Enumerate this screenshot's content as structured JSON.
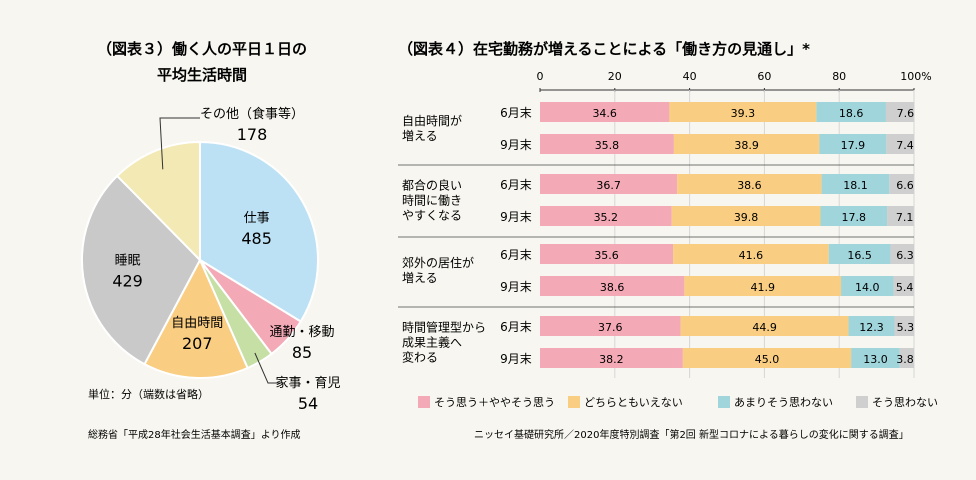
{
  "chart_data": [
    {
      "type": "pie",
      "title_line1": "（図表３）働く人の平日１日の",
      "title_line2": "平均生活時間",
      "slices": [
        {
          "name": "仕事",
          "value": 485,
          "color": "#bde1f4"
        },
        {
          "name": "通勤・移動",
          "value": 85,
          "color": "#f3aab6"
        },
        {
          "name": "家事・育児",
          "value": 54,
          "color": "#c6dfa4"
        },
        {
          "name": "自由時間",
          "value": 207,
          "color": "#f9cd82"
        },
        {
          "name": "睡眠",
          "value": 429,
          "color": "#c9c9c9"
        },
        {
          "name": "その他（食事等）",
          "value": 178,
          "color": "#f2e9b4"
        }
      ],
      "unit_note": "単位：分（端数は省略）",
      "source": "総務省「平成28年社会生活基本調査」より作成"
    },
    {
      "type": "bar",
      "orientation": "horizontal-stacked-100",
      "title": "（図表４）在宅勤務が増えることによる「働き方の見通し」*",
      "xlim": [
        0,
        100
      ],
      "xticks": [
        "0",
        "20",
        "40",
        "60",
        "80",
        "100%"
      ],
      "series": [
        {
          "name": "そう思う＋ややそう思う",
          "color": "#f3aab6"
        },
        {
          "name": "どちらともいえない",
          "color": "#f9cd82"
        },
        {
          "name": "あまりそう思わない",
          "color": "#9fd5db"
        },
        {
          "name": "そう思わない",
          "color": "#cfcfcf"
        }
      ],
      "groups": [
        {
          "label": [
            "自由時間が",
            "増える"
          ],
          "rows": [
            {
              "label": "6月末",
              "values": [
                34.6,
                39.3,
                18.6,
                7.6
              ]
            },
            {
              "label": "9月末",
              "values": [
                35.8,
                38.9,
                17.9,
                7.4
              ]
            }
          ]
        },
        {
          "label": [
            "都合の良い",
            "時間に働き",
            "やすくなる"
          ],
          "rows": [
            {
              "label": "6月末",
              "values": [
                36.7,
                38.6,
                18.1,
                6.6
              ]
            },
            {
              "label": "9月末",
              "values": [
                35.2,
                39.8,
                17.8,
                7.1
              ]
            }
          ]
        },
        {
          "label": [
            "郊外の居住が",
            "増える"
          ],
          "rows": [
            {
              "label": "6月末",
              "values": [
                35.6,
                41.6,
                16.5,
                6.3
              ]
            },
            {
              "label": "9月末",
              "values": [
                38.6,
                41.9,
                14.0,
                5.4
              ]
            }
          ]
        },
        {
          "label": [
            "時間管理型から",
            "成果主義へ",
            "変わる"
          ],
          "rows": [
            {
              "label": "6月末",
              "values": [
                37.6,
                44.9,
                12.3,
                5.3
              ]
            },
            {
              "label": "9月末",
              "values": [
                38.2,
                45.0,
                13.0,
                3.8
              ]
            }
          ]
        }
      ],
      "source": "ニッセイ基礎研究所／2020年度特別調査「第2回 新型コロナによる暮らしの変化に関する調査」"
    }
  ]
}
